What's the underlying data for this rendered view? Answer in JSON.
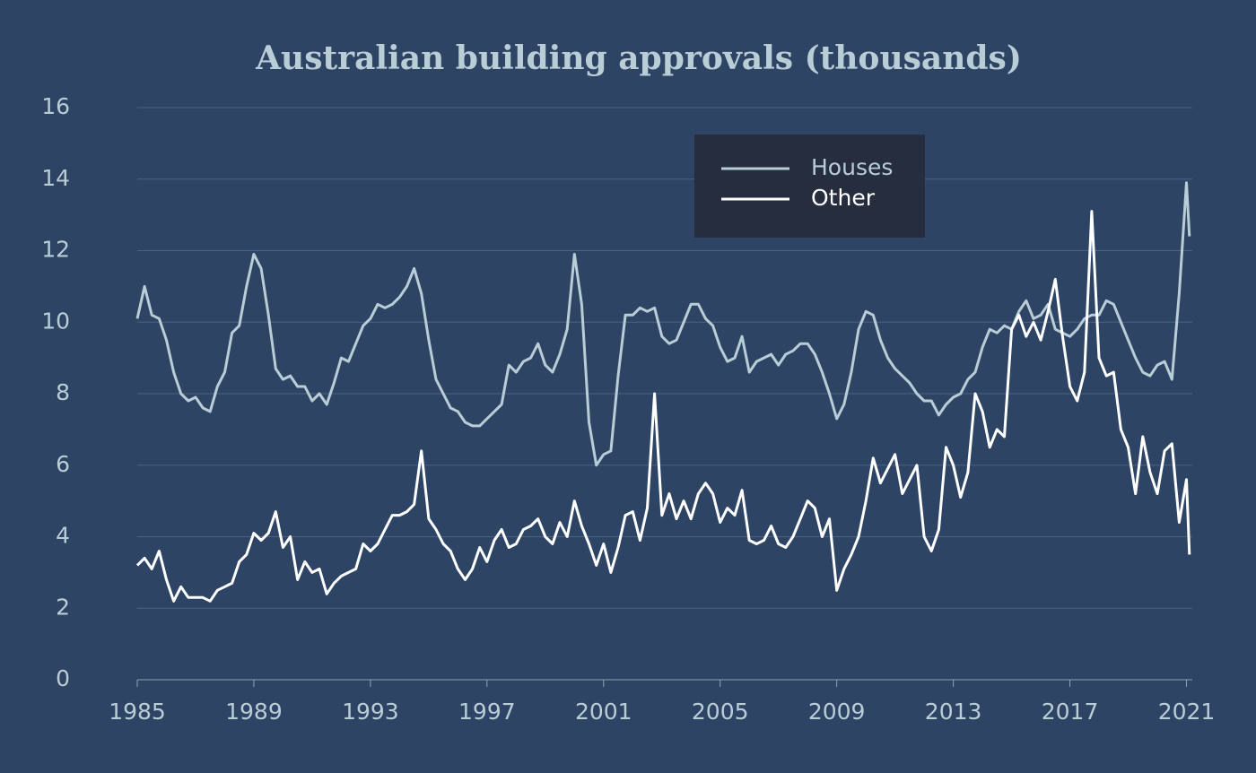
{
  "chart_data": {
    "type": "line",
    "title": "Australian building approvals (thousands)",
    "x": [
      1985,
      1985.25,
      1985.5,
      1985.75,
      1986,
      1986.25,
      1986.5,
      1986.75,
      1987,
      1987.25,
      1987.5,
      1987.75,
      1988,
      1988.25,
      1988.5,
      1988.75,
      1989,
      1989.25,
      1989.5,
      1989.75,
      1990,
      1990.25,
      1990.5,
      1990.75,
      1991,
      1991.25,
      1991.5,
      1991.75,
      1992,
      1992.25,
      1992.5,
      1992.75,
      1993,
      1993.25,
      1993.5,
      1993.75,
      1994,
      1994.25,
      1994.5,
      1994.75,
      1995,
      1995.25,
      1995.5,
      1995.75,
      1996,
      1996.25,
      1996.5,
      1996.75,
      1997,
      1997.25,
      1997.5,
      1997.75,
      1998,
      1998.25,
      1998.5,
      1998.75,
      1999,
      1999.25,
      1999.5,
      1999.75,
      2000,
      2000.25,
      2000.5,
      2000.75,
      2001,
      2001.25,
      2001.5,
      2001.75,
      2002,
      2002.25,
      2002.5,
      2002.75,
      2003,
      2003.25,
      2003.5,
      2003.75,
      2004,
      2004.25,
      2004.5,
      2004.75,
      2005,
      2005.25,
      2005.5,
      2005.75,
      2006,
      2006.25,
      2006.5,
      2006.75,
      2007,
      2007.25,
      2007.5,
      2007.75,
      2008,
      2008.25,
      2008.5,
      2008.75,
      2009,
      2009.25,
      2009.5,
      2009.75,
      2010,
      2010.25,
      2010.5,
      2010.75,
      2011,
      2011.25,
      2011.5,
      2011.75,
      2012,
      2012.25,
      2012.5,
      2012.75,
      2013,
      2013.25,
      2013.5,
      2013.75,
      2014,
      2014.25,
      2014.5,
      2014.75,
      2015,
      2015.25,
      2015.5,
      2015.75,
      2016,
      2016.25,
      2016.5,
      2016.75,
      2017,
      2017.25,
      2017.5,
      2017.75,
      2018,
      2018.25,
      2018.5,
      2018.75,
      2019,
      2019.25,
      2019.5,
      2019.75,
      2020,
      2020.25,
      2020.5,
      2020.75,
      2021,
      2021.1
    ],
    "series": [
      {
        "name": "Houses",
        "color": "#b8cdd6",
        "values": [
          10.1,
          11.0,
          10.2,
          10.1,
          9.5,
          8.6,
          8.0,
          7.8,
          7.9,
          7.6,
          7.5,
          8.2,
          8.6,
          9.7,
          9.9,
          11.0,
          11.9,
          11.5,
          10.2,
          8.7,
          8.4,
          8.5,
          8.2,
          8.2,
          7.8,
          8.0,
          7.7,
          8.3,
          9.0,
          8.9,
          9.4,
          9.9,
          10.1,
          10.5,
          10.4,
          10.5,
          10.7,
          11.0,
          11.5,
          10.8,
          9.5,
          8.4,
          8.0,
          7.6,
          7.5,
          7.2,
          7.1,
          7.1,
          7.3,
          7.5,
          7.7,
          8.8,
          8.6,
          8.9,
          9.0,
          9.4,
          8.8,
          8.6,
          9.1,
          9.8,
          11.9,
          10.5,
          7.2,
          6.0,
          6.3,
          6.4,
          8.5,
          10.2,
          10.2,
          10.4,
          10.3,
          10.4,
          9.6,
          9.4,
          9.5,
          10.0,
          10.5,
          10.5,
          10.1,
          9.9,
          9.3,
          8.9,
          9.0,
          9.6,
          8.6,
          8.9,
          9.0,
          9.1,
          8.8,
          9.1,
          9.2,
          9.4,
          9.4,
          9.1,
          8.6,
          8.0,
          7.3,
          7.7,
          8.6,
          9.8,
          10.3,
          10.2,
          9.5,
          9.0,
          8.7,
          8.5,
          8.3,
          8.0,
          7.8,
          7.8,
          7.4,
          7.7,
          7.9,
          8.0,
          8.4,
          8.6,
          9.3,
          9.8,
          9.7,
          9.9,
          9.8,
          10.3,
          10.6,
          10.1,
          10.2,
          10.5,
          9.8,
          9.7,
          9.6,
          9.8,
          10.1,
          10.2,
          10.2,
          10.6,
          10.5,
          10.0,
          9.5,
          9.0,
          8.6,
          8.5,
          8.8,
          8.9,
          8.4,
          10.8,
          13.9,
          12.4
        ]
      },
      {
        "name": "Other",
        "color": "#ffffff",
        "values": [
          3.2,
          3.4,
          3.1,
          3.6,
          2.8,
          2.2,
          2.6,
          2.3,
          2.3,
          2.3,
          2.2,
          2.5,
          2.6,
          2.7,
          3.3,
          3.5,
          4.1,
          3.9,
          4.1,
          4.7,
          3.7,
          4.0,
          2.8,
          3.3,
          3.0,
          3.1,
          2.4,
          2.7,
          2.9,
          3.0,
          3.1,
          3.8,
          3.6,
          3.8,
          4.2,
          4.6,
          4.6,
          4.7,
          4.9,
          6.4,
          4.5,
          4.2,
          3.8,
          3.6,
          3.1,
          2.8,
          3.1,
          3.7,
          3.3,
          3.9,
          4.2,
          3.7,
          3.8,
          4.2,
          4.3,
          4.5,
          4.0,
          3.8,
          4.4,
          4.0,
          5.0,
          4.3,
          3.8,
          3.2,
          3.8,
          3.0,
          3.7,
          4.6,
          4.7,
          3.9,
          4.8,
          8.0,
          4.6,
          5.2,
          4.5,
          5.0,
          4.5,
          5.2,
          5.5,
          5.2,
          4.4,
          4.8,
          4.6,
          5.3,
          3.9,
          3.8,
          3.9,
          4.3,
          3.8,
          3.7,
          4.0,
          4.5,
          5.0,
          4.8,
          4.0,
          4.5,
          2.5,
          3.1,
          3.5,
          4.0,
          5.0,
          6.2,
          5.5,
          5.9,
          6.3,
          5.2,
          5.6,
          6.0,
          4.0,
          3.6,
          4.2,
          6.5,
          6.0,
          5.1,
          5.8,
          8.0,
          7.5,
          6.5,
          7.0,
          6.8,
          9.8,
          10.2,
          9.6,
          10.0,
          9.5,
          10.3,
          11.2,
          9.6,
          8.2,
          7.8,
          8.6,
          13.1,
          9.0,
          8.5,
          8.6,
          7.0,
          6.5,
          5.2,
          6.8,
          5.8,
          5.2,
          6.4,
          6.6,
          4.4,
          5.6,
          3.5
        ]
      }
    ],
    "xlim": [
      1985,
      2021.2
    ],
    "xticks": [
      1985,
      1989,
      1993,
      1997,
      2001,
      2005,
      2009,
      2013,
      2017,
      2021
    ],
    "ylim": [
      0,
      16
    ],
    "yticks": [
      0,
      2,
      4,
      6,
      8,
      10,
      12,
      14,
      16
    ],
    "grid": true,
    "legend": "top-right"
  }
}
